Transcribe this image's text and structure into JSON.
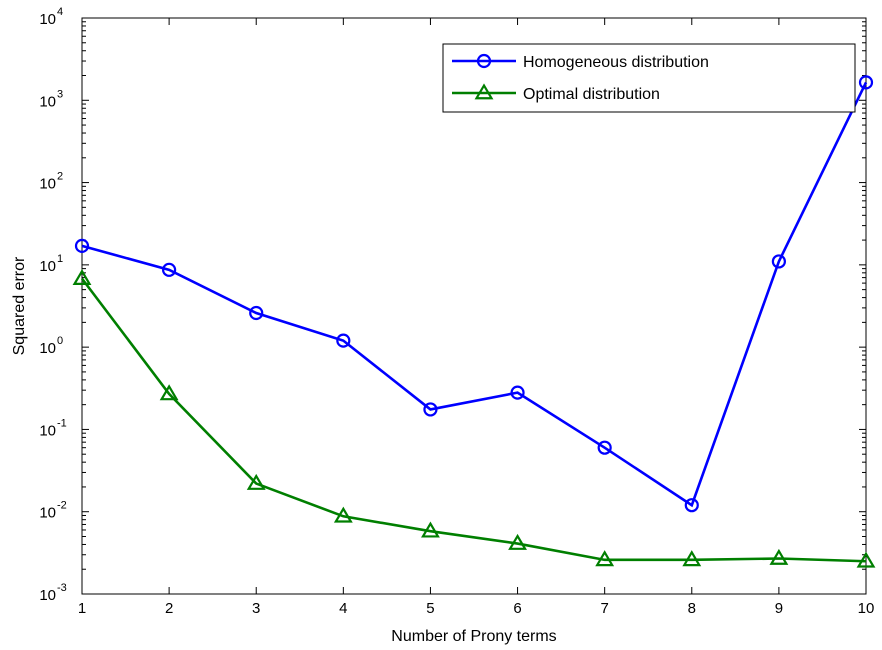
{
  "chart_data": {
    "type": "line",
    "xlabel": "Number of Prony terms",
    "ylabel": "Squared error",
    "x": [
      1,
      2,
      3,
      4,
      5,
      6,
      7,
      8,
      9,
      10
    ],
    "xlim": [
      1,
      10
    ],
    "ylim": [
      0.001,
      10000
    ],
    "yscale": "log",
    "y_ticks": [
      {
        "base": "10",
        "exp": "-3",
        "value": 0.001
      },
      {
        "base": "10",
        "exp": "-2",
        "value": 0.01
      },
      {
        "base": "10",
        "exp": "-1",
        "value": 0.1
      },
      {
        "base": "10",
        "exp": "0",
        "value": 1
      },
      {
        "base": "10",
        "exp": "1",
        "value": 10
      },
      {
        "base": "10",
        "exp": "2",
        "value": 100
      },
      {
        "base": "10",
        "exp": "3",
        "value": 1000
      },
      {
        "base": "10",
        "exp": "4",
        "value": 10000
      }
    ],
    "x_ticks": [
      "1",
      "2",
      "3",
      "4",
      "5",
      "6",
      "7",
      "8",
      "9",
      "10"
    ],
    "grid": false,
    "legend_position": "top-right",
    "series": [
      {
        "name": "Homogeneous distribution",
        "color": "#0000ff",
        "marker": "circle",
        "values": [
          17,
          8.7,
          2.6,
          1.2,
          0.175,
          0.28,
          0.06,
          0.012,
          11,
          1650
        ]
      },
      {
        "name": "Optimal distribution",
        "color": "#007f00",
        "marker": "triangle",
        "values": [
          6.8,
          0.27,
          0.022,
          0.0088,
          0.0058,
          0.0041,
          0.0026,
          0.0026,
          0.0027,
          0.0025
        ]
      }
    ]
  }
}
